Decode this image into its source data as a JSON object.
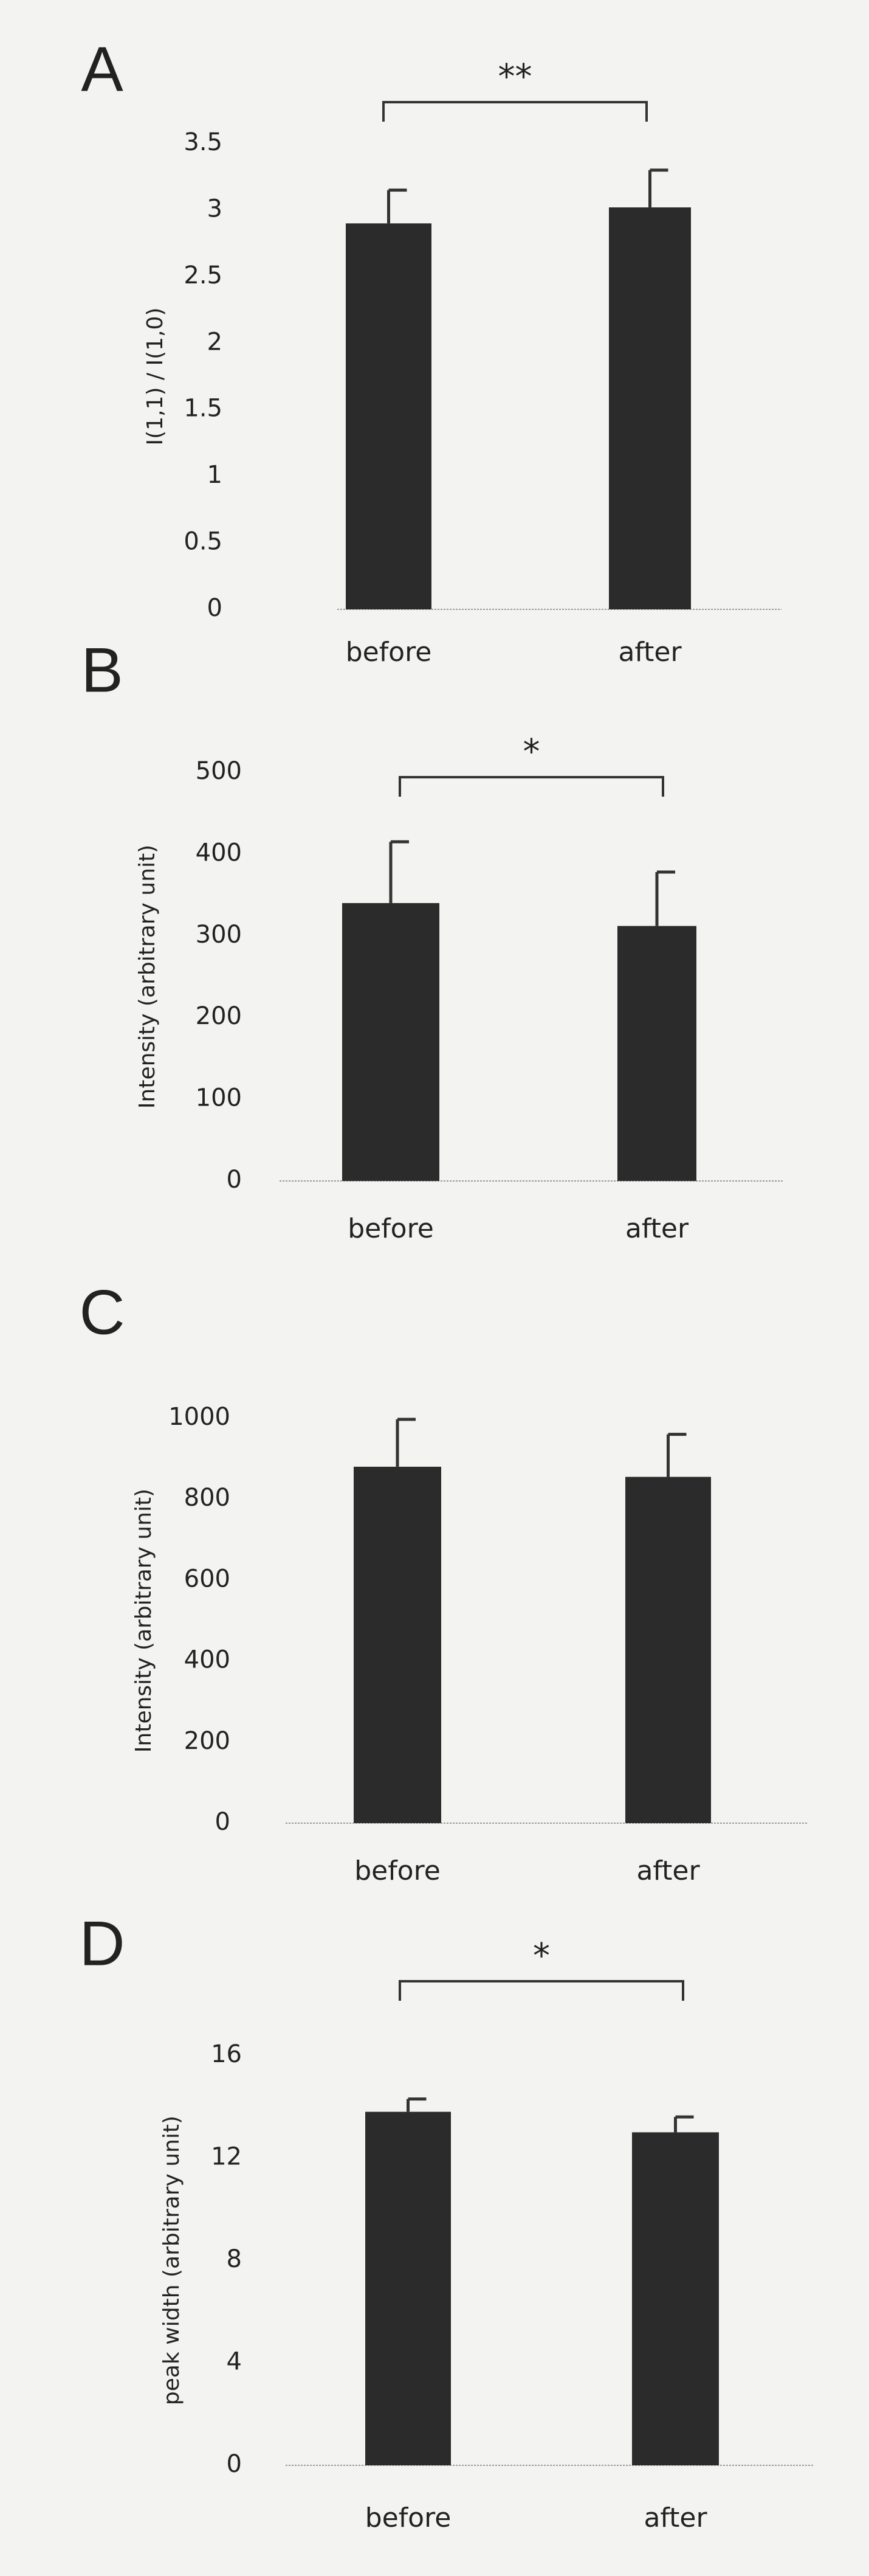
{
  "chart_data": [
    {
      "type": "bar",
      "panel": "A",
      "ylabel": "I(1,1) / I(1,0)",
      "categories": [
        "before",
        "after"
      ],
      "values": [
        2.9,
        3.02
      ],
      "errors": [
        0.25,
        0.28
      ],
      "color": "#2b2b2b",
      "ylim": [
        0,
        3.5
      ],
      "yticks": [
        0,
        0.5,
        1,
        1.5,
        2,
        2.5,
        3,
        3.5
      ],
      "significance": "**"
    },
    {
      "type": "bar",
      "panel": "B",
      "ylabel": "Intensity (arbitrary unit)",
      "categories": [
        "before",
        "after"
      ],
      "values": [
        340,
        312
      ],
      "errors": [
        75,
        66
      ],
      "color": "#2b2b2b",
      "ylim": [
        0,
        500
      ],
      "yticks": [
        0,
        100,
        200,
        300,
        400,
        500
      ],
      "significance": "*"
    },
    {
      "type": "bar",
      "panel": "C",
      "ylabel": "Intensity (arbitrary unit)",
      "categories": [
        "before",
        "after"
      ],
      "values": [
        880,
        855
      ],
      "errors": [
        117,
        105
      ],
      "color": "#2b2b2b",
      "ylim": [
        0,
        1000
      ],
      "yticks": [
        0,
        200,
        400,
        600,
        800,
        1000
      ]
    },
    {
      "type": "bar",
      "panel": "D",
      "ylabel": "peak width (arbitrary unit)",
      "categories": [
        "before",
        "after"
      ],
      "values": [
        13.8,
        13.0
      ],
      "errors": [
        0.5,
        0.6
      ],
      "color": "#2b2b2b",
      "ylim": [
        0,
        16
      ],
      "yticks": [
        0,
        4,
        8,
        12,
        16
      ],
      "significance": "*"
    }
  ]
}
